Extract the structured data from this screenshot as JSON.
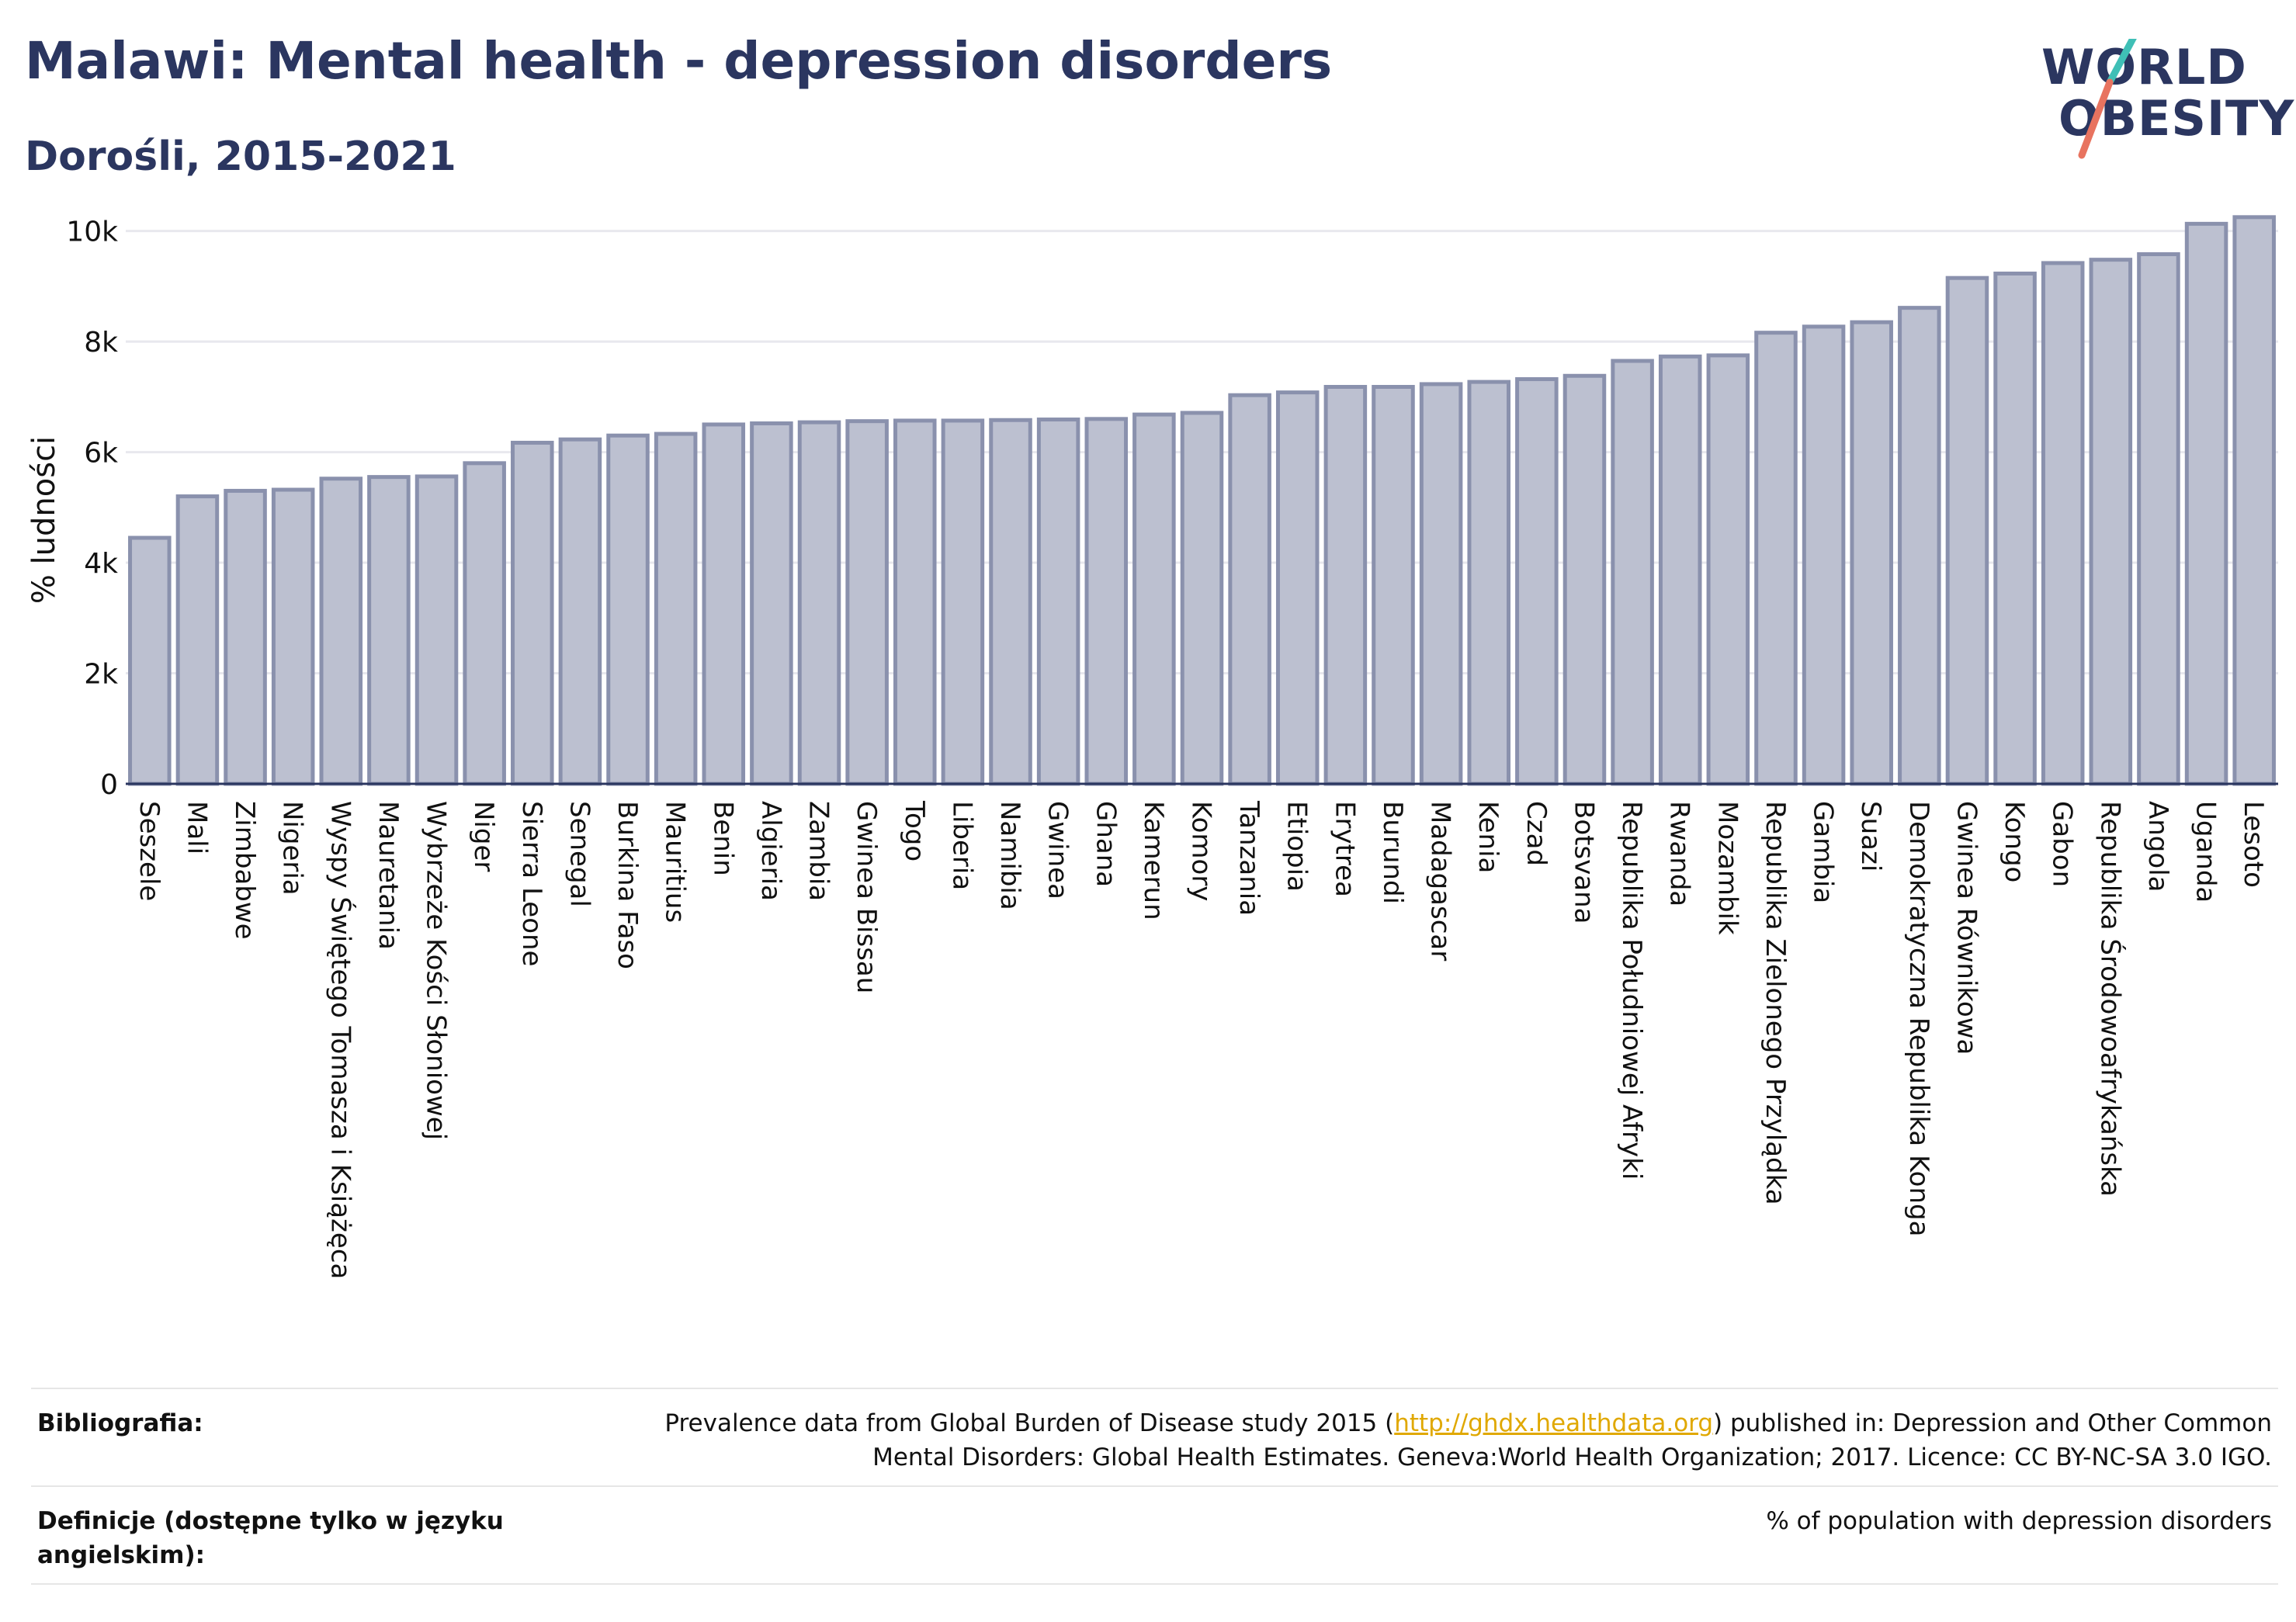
{
  "title": "Malawi: Mental health - depression disorders",
  "subtitle": "Dorośli, 2015-2021",
  "logo": {
    "line1": "WORLD",
    "line2": "OBESITY",
    "accent_teal": "#3fbfb6",
    "accent_coral": "#e8735f"
  },
  "colors": {
    "bar_fill": "#bcc0d0",
    "bar_stroke": "#8a91ad",
    "text": "#2b3660",
    "axis": "#2b3660",
    "grid": "#e8e8ee"
  },
  "chart_data": {
    "type": "bar",
    "ylabel": "% ludności",
    "xlabel": "",
    "ylim": [
      0,
      10500
    ],
    "yticks": [
      0,
      2000,
      4000,
      6000,
      8000,
      10000
    ],
    "ytick_labels": [
      "0",
      "2k",
      "4k",
      "6k",
      "8k",
      "10k"
    ],
    "grid": true,
    "categories": [
      "Seszele",
      "Mali",
      "Zimbabwe",
      "Nigeria",
      "Wyspy Świętego Tomasza i Książęca",
      "Mauretania",
      "Wybrzeże Kości Słoniowej",
      "Niger",
      "Sierra Leone",
      "Senegal",
      "Burkina Faso",
      "Mauritius",
      "Benin",
      "Algieria",
      "Zambia",
      "Gwinea Bissau",
      "Togo",
      "Liberia",
      "Namibia",
      "Gwinea",
      "Ghana",
      "Kamerun",
      "Komory",
      "Tanzania",
      "Etiopia",
      "Erytrea",
      "Burundi",
      "Madagascar",
      "Kenia",
      "Czad",
      "Botsvana",
      "Republika Południowej Afryki",
      "Rwanda",
      "Mozambik",
      "Republika Zielonego Przylądka",
      "Gambia",
      "Suazi",
      "Demokratyczna Republika Konga",
      "Gwinea Równikowa",
      "Kongo",
      "Gabon",
      "Republika Środowoafrykańska",
      "Angola",
      "Uganda",
      "Lesoto"
    ],
    "values": [
      4450,
      5200,
      5300,
      5320,
      5520,
      5550,
      5560,
      5800,
      6170,
      6230,
      6300,
      6330,
      6500,
      6520,
      6540,
      6560,
      6570,
      6570,
      6580,
      6590,
      6600,
      6680,
      6710,
      7030,
      7080,
      7180,
      7180,
      7230,
      7270,
      7320,
      7380,
      7650,
      7730,
      7750,
      8160,
      8270,
      8350,
      8610,
      9150,
      9230,
      9420,
      9480,
      9580,
      10130,
      10250
    ]
  },
  "footer": {
    "bibliography_label": "Bibliografia:",
    "bibliography_line1_pre": "Prevalence data from Global Burden of Disease study 2015 (",
    "bibliography_link": "http://ghdx.healthdata.org",
    "bibliography_line1_post": ") published in: Depression and Other Common",
    "bibliography_line2": "Mental Disorders: Global Health Estimates. Geneva:World Health Organization; 2017. Licence: CC BY-NC-SA 3.0 IGO.",
    "definitions_label_line1": "Definicje (dostępne tylko w języku",
    "definitions_label_line2": "angielskim):",
    "definitions_value": "% of population with depression disorders"
  }
}
